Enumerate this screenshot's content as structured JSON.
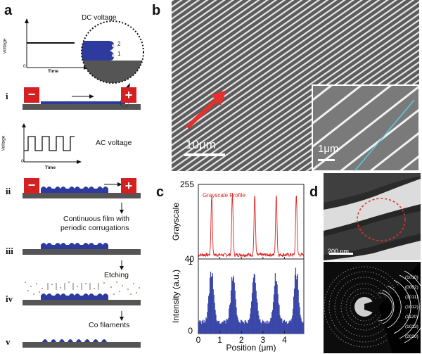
{
  "panels": {
    "a": {
      "letter": "a",
      "dc_plot": {
        "ylabel": "Voltage",
        "xlabel": "Time",
        "origin": "0"
      },
      "dc_inset": {
        "title": "DC voltage",
        "marker1": "1",
        "marker2": "2"
      },
      "ac_plot": {
        "ylabel": "Voltage",
        "xlabel": "Time",
        "origin": "0"
      },
      "ac_label": "AC voltage",
      "minus": "−",
      "plus": "+",
      "steps": [
        "i",
        "ii",
        "iii",
        "iv",
        "v"
      ],
      "captions": {
        "film_line1": "Continuous film with",
        "film_line2": "periodic corrugations",
        "etching": "Etching",
        "filaments": "Co filaments"
      },
      "colors": {
        "film": "#2d3a9e",
        "electrode": "#d42020",
        "substrate": "#4d4d4d"
      }
    },
    "b": {
      "letter": "b",
      "scale_main": "10μm",
      "scale_inset": "1μm",
      "colors": {
        "arrow": "#e33030",
        "profile_line": "#5ec8e8"
      }
    },
    "c": {
      "letter": "c",
      "profile_legend": "Grayscale Profile",
      "ylabel_top": "Grayscale",
      "ylabel_bottom": "Intensity (a.u.)",
      "xlabel": "Position (μm)"
    },
    "d": {
      "letter": "d",
      "scale_tem": "200 nm",
      "planes": [
        "(1010)",
        "(0002)",
        "(1011)",
        "(1012)",
        "(1120)",
        "(1013)",
        "(2020)"
      ]
    }
  },
  "chart_data": [
    {
      "type": "line",
      "title": "Grayscale Profile",
      "ylabel": "Grayscale",
      "xlabel": "Position (μm)",
      "xlim": [
        0,
        4.9
      ],
      "ylim": [
        40,
        255
      ],
      "yticks": [
        40,
        255
      ],
      "xticks": [
        0,
        1,
        2,
        3,
        4
      ],
      "baseline": 52,
      "peaks": [
        {
          "x": 0.62,
          "y": 225
        },
        {
          "x": 1.58,
          "y": 228
        },
        {
          "x": 2.62,
          "y": 226
        },
        {
          "x": 3.62,
          "y": 229
        },
        {
          "x": 4.55,
          "y": 228
        }
      ],
      "color": "#dd2222"
    },
    {
      "type": "area",
      "title": "",
      "ylabel": "Intensity (a.u.)",
      "xlabel": "Position (μm)",
      "xlim": [
        0,
        4.9
      ],
      "ylim": [
        0,
        1
      ],
      "yticks": [
        0,
        1
      ],
      "xticks": [
        0,
        1,
        2,
        3,
        4
      ],
      "xticklabels": [
        "0",
        "1",
        "2",
        "3",
        "4"
      ],
      "baseline": 0.13,
      "peaks": [
        {
          "x": 0.6,
          "y": 0.95
        },
        {
          "x": 1.6,
          "y": 0.82
        },
        {
          "x": 2.6,
          "y": 0.83
        },
        {
          "x": 3.6,
          "y": 0.78
        },
        {
          "x": 4.55,
          "y": 0.85
        }
      ],
      "color": "#3a47a8"
    }
  ]
}
